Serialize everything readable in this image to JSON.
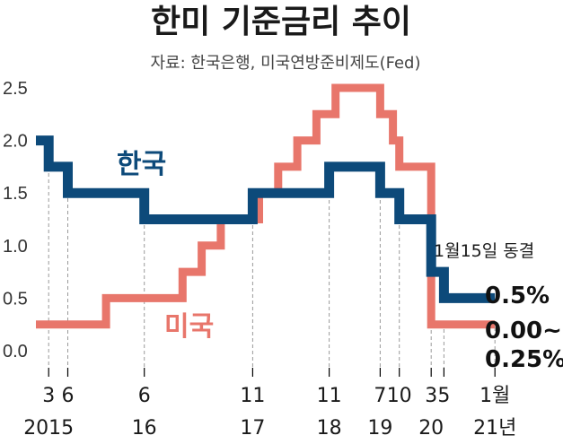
{
  "title": "한미 기준금리 추이",
  "source": "자료: 한국은행, 미국연방준비제도(Fed)",
  "chart_data": {
    "type": "line",
    "step": true,
    "y_ticks": [
      "2.5",
      "2.0",
      "1.5",
      "1.0",
      "0.5",
      "0.0"
    ],
    "ylim": [
      0,
      2.5
    ],
    "grid": false,
    "x_ticks": [
      {
        "month": "3",
        "year": "2015"
      },
      {
        "month": "6",
        "year": ""
      },
      {
        "month": "6",
        "year": "16"
      },
      {
        "month": "11",
        "year": "17"
      },
      {
        "month": "11",
        "year": "18"
      },
      {
        "month": "7",
        "year": "19"
      },
      {
        "month": "10",
        "year": ""
      },
      {
        "month": "3",
        "year": "20"
      },
      {
        "month": "5",
        "year": ""
      },
      {
        "month": "1월",
        "year": "21년"
      }
    ],
    "annotation": "1월15일 동결",
    "series": [
      {
        "name": "한국",
        "color": "#0d4a7a",
        "end_label": "0.5%",
        "points": [
          [
            "2015-01",
            2.0
          ],
          [
            "2015-03",
            1.75
          ],
          [
            "2015-06",
            1.5
          ],
          [
            "2016-06",
            1.25
          ],
          [
            "2017-11",
            1.5
          ],
          [
            "2018-11",
            1.75
          ],
          [
            "2019-07",
            1.5
          ],
          [
            "2019-10",
            1.25
          ],
          [
            "2020-03",
            0.75
          ],
          [
            "2020-05",
            0.5
          ],
          [
            "2021-01",
            0.5
          ]
        ]
      },
      {
        "name": "미국",
        "color": "#e8766b",
        "end_label_line1": "0.00~",
        "end_label_line2": "0.25%",
        "points": [
          [
            "2015-01",
            0.25
          ],
          [
            "2015-12",
            0.5
          ],
          [
            "2016-12",
            0.75
          ],
          [
            "2017-03",
            1.0
          ],
          [
            "2017-06",
            1.25
          ],
          [
            "2017-12",
            1.5
          ],
          [
            "2018-03",
            1.75
          ],
          [
            "2018-06",
            2.0
          ],
          [
            "2018-09",
            2.25
          ],
          [
            "2018-12",
            2.5
          ],
          [
            "2019-07",
            2.25
          ],
          [
            "2019-09",
            2.0
          ],
          [
            "2019-10",
            1.75
          ],
          [
            "2020-03",
            0.25
          ],
          [
            "2021-01",
            0.25
          ]
        ]
      }
    ]
  }
}
